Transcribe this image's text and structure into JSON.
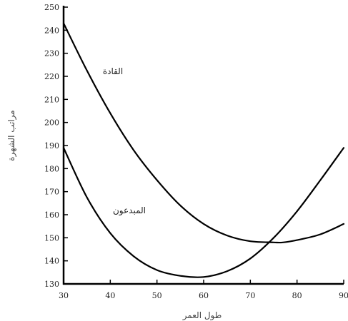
{
  "chart_data": {
    "type": "line",
    "xlabel": "طول العمر",
    "ylabel": "مراتب الشهرة",
    "xlim": [
      30,
      90
    ],
    "ylim": [
      130,
      250
    ],
    "x_ticks": [
      30,
      40,
      50,
      60,
      70,
      80,
      90
    ],
    "y_ticks": [
      130,
      140,
      150,
      160,
      170,
      180,
      190,
      200,
      210,
      220,
      230,
      240,
      250
    ],
    "grid": false,
    "series": [
      {
        "name": "القادة",
        "x": [
          30,
          35,
          40,
          45,
          50,
          55,
          60,
          65,
          70,
          75,
          77,
          80,
          85,
          90
        ],
        "y": [
          243,
          222.5,
          204,
          188,
          175,
          164,
          156,
          151,
          148.5,
          148,
          148,
          149,
          151.5,
          156
        ]
      },
      {
        "name": "المبدعون",
        "x": [
          30,
          35,
          40,
          45,
          50,
          55,
          60,
          65,
          70,
          75,
          80,
          85,
          90
        ],
        "y": [
          189,
          167.5,
          152,
          142,
          136,
          133.5,
          133,
          135.5,
          141,
          150,
          161.5,
          175,
          189
        ]
      }
    ]
  }
}
